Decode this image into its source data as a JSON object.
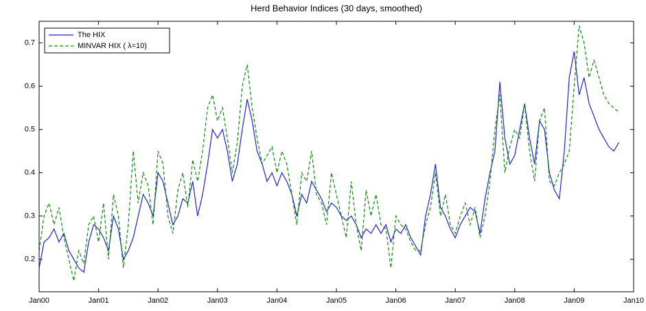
{
  "chart_data": {
    "type": "line",
    "title": "Herd Behavior Indices (30 days, smoothed)",
    "x": [
      "2000-01",
      "2000-02",
      "2000-03",
      "2000-04",
      "2000-05",
      "2000-06",
      "2000-07",
      "2000-08",
      "2000-09",
      "2000-10",
      "2000-11",
      "2000-12",
      "2001-01",
      "2001-02",
      "2001-03",
      "2001-04",
      "2001-05",
      "2001-06",
      "2001-07",
      "2001-08",
      "2001-09",
      "2001-10",
      "2001-11",
      "2001-12",
      "2002-01",
      "2002-02",
      "2002-03",
      "2002-04",
      "2002-05",
      "2002-06",
      "2002-07",
      "2002-08",
      "2002-09",
      "2002-10",
      "2002-11",
      "2002-12",
      "2003-01",
      "2003-02",
      "2003-03",
      "2003-04",
      "2003-05",
      "2003-06",
      "2003-07",
      "2003-08",
      "2003-09",
      "2003-10",
      "2003-11",
      "2003-12",
      "2004-01",
      "2004-02",
      "2004-03",
      "2004-04",
      "2004-05",
      "2004-06",
      "2004-07",
      "2004-08",
      "2004-09",
      "2004-10",
      "2004-11",
      "2004-12",
      "2005-01",
      "2005-02",
      "2005-03",
      "2005-04",
      "2005-05",
      "2005-06",
      "2005-07",
      "2005-08",
      "2005-09",
      "2005-10",
      "2005-11",
      "2005-12",
      "2006-01",
      "2006-02",
      "2006-03",
      "2006-04",
      "2006-05",
      "2006-06",
      "2006-07",
      "2006-08",
      "2006-09",
      "2006-10",
      "2006-11",
      "2006-12",
      "2007-01",
      "2007-02",
      "2007-03",
      "2007-04",
      "2007-05",
      "2007-06",
      "2007-07",
      "2007-08",
      "2007-09",
      "2007-10",
      "2007-11",
      "2007-12",
      "2008-01",
      "2008-02",
      "2008-03",
      "2008-04",
      "2008-05",
      "2008-06",
      "2008-07",
      "2008-08",
      "2008-09",
      "2008-10",
      "2008-11",
      "2008-12",
      "2009-01",
      "2009-02",
      "2009-03",
      "2009-04",
      "2009-05",
      "2009-06",
      "2009-07",
      "2009-08",
      "2009-09",
      "2009-10"
    ],
    "series": [
      {
        "name": "The HIX",
        "color": "#1f1fd6",
        "dash": false,
        "values": [
          0.18,
          0.24,
          0.25,
          0.27,
          0.24,
          0.26,
          0.22,
          0.2,
          0.18,
          0.17,
          0.24,
          0.28,
          0.27,
          0.25,
          0.22,
          0.3,
          0.27,
          0.2,
          0.22,
          0.25,
          0.3,
          0.35,
          0.33,
          0.3,
          0.4,
          0.38,
          0.33,
          0.28,
          0.3,
          0.34,
          0.33,
          0.38,
          0.3,
          0.35,
          0.42,
          0.5,
          0.48,
          0.5,
          0.45,
          0.38,
          0.42,
          0.5,
          0.57,
          0.52,
          0.45,
          0.42,
          0.38,
          0.4,
          0.37,
          0.4,
          0.38,
          0.35,
          0.3,
          0.35,
          0.33,
          0.38,
          0.36,
          0.34,
          0.31,
          0.33,
          0.32,
          0.3,
          0.29,
          0.3,
          0.28,
          0.25,
          0.27,
          0.26,
          0.28,
          0.26,
          0.28,
          0.24,
          0.27,
          0.26,
          0.28,
          0.25,
          0.23,
          0.21,
          0.3,
          0.35,
          0.42,
          0.32,
          0.3,
          0.27,
          0.25,
          0.28,
          0.3,
          0.32,
          0.31,
          0.26,
          0.34,
          0.4,
          0.45,
          0.61,
          0.48,
          0.42,
          0.44,
          0.5,
          0.56,
          0.48,
          0.42,
          0.52,
          0.5,
          0.4,
          0.36,
          0.34,
          0.45,
          0.62,
          0.68,
          0.58,
          0.62,
          0.56,
          0.53,
          0.5,
          0.48,
          0.46,
          0.45,
          0.47
        ]
      },
      {
        "name": "MINVAR HIX ( λ=10)",
        "color": "#0a8a0a",
        "dash": true,
        "values": [
          0.22,
          0.3,
          0.33,
          0.28,
          0.32,
          0.25,
          0.2,
          0.15,
          0.22,
          0.19,
          0.28,
          0.3,
          0.24,
          0.33,
          0.2,
          0.35,
          0.3,
          0.18,
          0.28,
          0.45,
          0.33,
          0.4,
          0.37,
          0.28,
          0.45,
          0.42,
          0.3,
          0.26,
          0.36,
          0.4,
          0.32,
          0.43,
          0.38,
          0.45,
          0.55,
          0.58,
          0.52,
          0.55,
          0.48,
          0.4,
          0.47,
          0.6,
          0.65,
          0.55,
          0.48,
          0.42,
          0.44,
          0.46,
          0.4,
          0.45,
          0.42,
          0.35,
          0.28,
          0.4,
          0.38,
          0.45,
          0.35,
          0.33,
          0.28,
          0.4,
          0.35,
          0.3,
          0.25,
          0.38,
          0.28,
          0.22,
          0.36,
          0.3,
          0.35,
          0.28,
          0.27,
          0.18,
          0.3,
          0.28,
          0.27,
          0.24,
          0.22,
          0.22,
          0.28,
          0.32,
          0.4,
          0.3,
          0.35,
          0.28,
          0.26,
          0.3,
          0.33,
          0.28,
          0.32,
          0.25,
          0.3,
          0.38,
          0.5,
          0.58,
          0.4,
          0.46,
          0.5,
          0.48,
          0.56,
          0.45,
          0.38,
          0.52,
          0.55,
          0.38,
          0.37,
          0.4,
          0.42,
          0.45,
          0.6,
          0.74,
          0.7,
          0.62,
          0.66,
          0.62,
          0.58,
          0.56,
          0.55,
          0.54
        ]
      }
    ],
    "xlim": [
      "2000-01",
      "2010-01"
    ],
    "xticks": [
      {
        "value": "2000-01",
        "label": "Jan00"
      },
      {
        "value": "2001-01",
        "label": "Jan01"
      },
      {
        "value": "2002-01",
        "label": "Jan02"
      },
      {
        "value": "2003-01",
        "label": "Jan03"
      },
      {
        "value": "2004-01",
        "label": "Jan04"
      },
      {
        "value": "2005-01",
        "label": "Jan05"
      },
      {
        "value": "2006-01",
        "label": "Jan06"
      },
      {
        "value": "2007-01",
        "label": "Jan07"
      },
      {
        "value": "2008-01",
        "label": "Jan08"
      },
      {
        "value": "2009-01",
        "label": "Jan09"
      },
      {
        "value": "2010-01",
        "label": "Jan10"
      }
    ],
    "ylim": [
      0.125,
      0.75
    ],
    "yticks": [
      0.2,
      0.3,
      0.4,
      0.5,
      0.6,
      0.7
    ],
    "legend": "top-left"
  }
}
